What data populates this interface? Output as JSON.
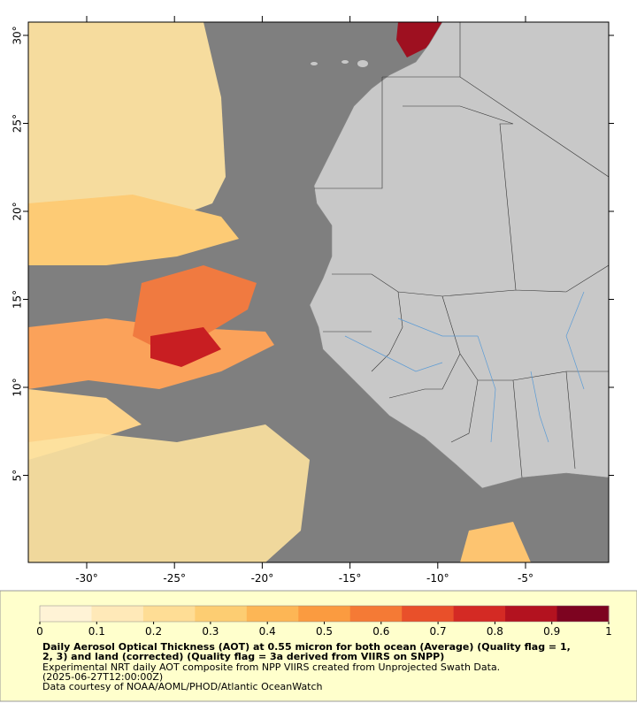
{
  "map": {
    "lat_ticks": [
      {
        "value": 30,
        "label": "30°"
      },
      {
        "value": 25,
        "label": "25°"
      },
      {
        "value": 20,
        "label": "20°"
      },
      {
        "value": 15,
        "label": "15°"
      },
      {
        "value": 10,
        "label": "10°"
      },
      {
        "value": 5,
        "label": "5°"
      }
    ],
    "lon_ticks": [
      {
        "value": -30,
        "label": "-30°"
      },
      {
        "value": -25,
        "label": "-25°"
      },
      {
        "value": -20,
        "label": "-20°"
      },
      {
        "value": -15,
        "label": "-15°"
      },
      {
        "value": -10,
        "label": "-10°"
      },
      {
        "value": -5,
        "label": "-5°"
      }
    ]
  },
  "colorbar": {
    "range": [
      0,
      1
    ],
    "ticks": [
      0,
      0.1,
      0.2,
      0.3,
      0.4,
      0.5,
      0.6,
      0.7,
      0.8,
      0.9,
      1
    ],
    "colors": [
      "#fff3d6",
      "#ffe9b8",
      "#fedd95",
      "#fdcd72",
      "#fdb655",
      "#fb9b40",
      "#f57a35",
      "#e9502a",
      "#d42a24",
      "#b3121f",
      "#7d0320"
    ]
  },
  "caption": {
    "title_lines": [
      "Daily Aerosol Optical Thickness (AOT) at 0.55 micron for both ocean (Average) (Quality flag = 1,",
      "2, 3) and land (corrected) (Quality flag = 3a derived from VIIRS on SNPP)"
    ],
    "lines": [
      "Experimental NRT daily AOT composite from NPP VIIRS created from Unprojected Swath Data.",
      "(2025-06-27T12:00:00Z)",
      "Data courtesy of NOAA/AOML/PHOD/Atlantic OceanWatch"
    ]
  }
}
